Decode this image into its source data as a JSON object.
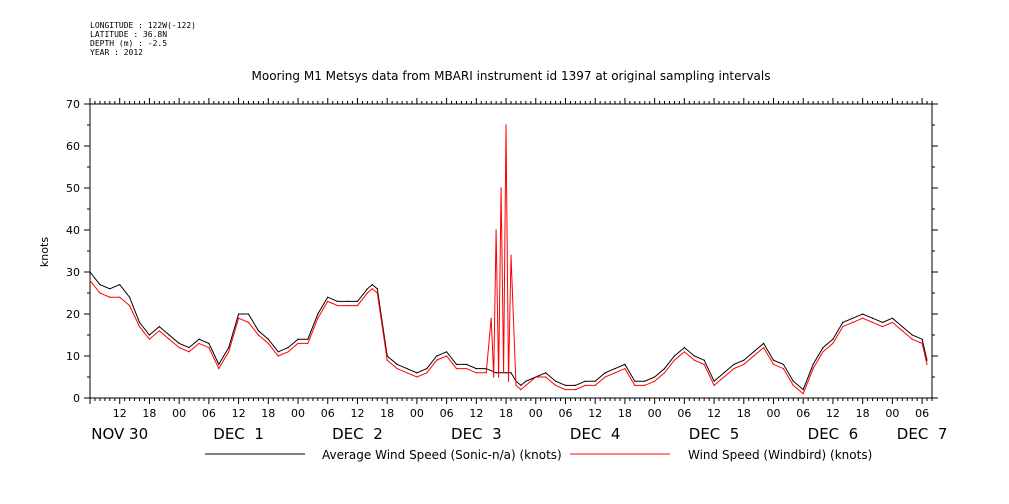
{
  "meta": {
    "longitude": "LONGITUDE : 122W(-122)",
    "latitude": "LATITUDE : 36.8N",
    "depth": "DEPTH (m) : -2.5",
    "year": "YEAR : 2012"
  },
  "chart_data": {
    "type": "line",
    "title": "Mooring M1 Metsys data from MBARI instrument id 1397 at original sampling intervals",
    "ylabel": "knots",
    "xlabel": "",
    "ylim": [
      0,
      70
    ],
    "yticks": [
      0,
      10,
      20,
      30,
      40,
      50,
      60,
      70
    ],
    "xlim_hours": [
      0,
      170
    ],
    "hour_labels": [
      "12",
      "18",
      "00",
      "06",
      "12",
      "18",
      "00",
      "06",
      "12",
      "18",
      "00",
      "06",
      "12",
      "18",
      "00",
      "06",
      "12",
      "18",
      "00",
      "06",
      "12",
      "18",
      "00",
      "06",
      "12",
      "18",
      "00",
      "06"
    ],
    "day_labels": [
      "NOV 30",
      "DEC  1",
      "DEC  2",
      "DEC  3",
      "DEC  4",
      "DEC  5",
      "DEC  6",
      "DEC  7"
    ],
    "day_label_hours": [
      6,
      30,
      54,
      78,
      102,
      126,
      150,
      168
    ],
    "grid": false,
    "legend_position": "bottom",
    "colors": {
      "black_series": "#000000",
      "red_series": "#ff0000"
    },
    "series": [
      {
        "name": "Average Wind Speed (Sonic-n/a) (knots)",
        "color": "#000000",
        "x": [
          0,
          2,
          4,
          6,
          8,
          10,
          12,
          14,
          16,
          18,
          20,
          22,
          24,
          26,
          28,
          30,
          32,
          34,
          36,
          38,
          40,
          42,
          44,
          46,
          48,
          50,
          52,
          54,
          56,
          57,
          58,
          60,
          62,
          64,
          66,
          68,
          70,
          72,
          74,
          76,
          78,
          80,
          82,
          84,
          85,
          86,
          87,
          88,
          90,
          92,
          94,
          96,
          98,
          100,
          102,
          104,
          106,
          108,
          110,
          112,
          114,
          116,
          118,
          120,
          122,
          124,
          126,
          128,
          130,
          132,
          134,
          136,
          138,
          140,
          142,
          144,
          146,
          148,
          150,
          152,
          154,
          156,
          158,
          160,
          162,
          164,
          166,
          168,
          169
        ],
        "y": [
          30,
          27,
          26,
          27,
          24,
          18,
          15,
          17,
          15,
          13,
          12,
          14,
          13,
          8,
          12,
          20,
          20,
          16,
          14,
          11,
          12,
          14,
          14,
          20,
          24,
          23,
          23,
          23,
          26,
          27,
          26,
          10,
          8,
          7,
          6,
          7,
          10,
          11,
          8,
          8,
          7,
          7,
          6,
          6,
          6,
          4,
          3,
          4,
          5,
          6,
          4,
          3,
          3,
          4,
          4,
          6,
          7,
          8,
          4,
          4,
          5,
          7,
          10,
          12,
          10,
          9,
          4,
          6,
          8,
          9,
          11,
          13,
          9,
          8,
          4,
          2,
          8,
          12,
          14,
          18,
          19,
          20,
          19,
          18,
          19,
          17,
          15,
          14,
          9
        ]
      },
      {
        "name": "Wind Speed (Windbird) (knots)",
        "color": "#ff0000",
        "x": [
          0,
          2,
          4,
          6,
          8,
          10,
          12,
          14,
          16,
          18,
          20,
          22,
          24,
          26,
          28,
          30,
          32,
          34,
          36,
          38,
          40,
          42,
          44,
          46,
          48,
          50,
          52,
          54,
          56,
          57,
          58,
          60,
          62,
          64,
          66,
          68,
          70,
          72,
          74,
          76,
          78,
          80,
          81,
          81.5,
          82,
          82.5,
          83,
          83.5,
          84,
          84.5,
          85,
          86,
          87,
          88,
          90,
          92,
          94,
          96,
          98,
          100,
          102,
          104,
          106,
          108,
          110,
          112,
          114,
          116,
          118,
          120,
          122,
          124,
          126,
          128,
          130,
          132,
          134,
          136,
          138,
          140,
          142,
          144,
          146,
          148,
          150,
          152,
          154,
          156,
          158,
          160,
          162,
          164,
          166,
          168,
          169
        ],
        "y": [
          28,
          25,
          24,
          24,
          22,
          17,
          14,
          16,
          14,
          12,
          11,
          13,
          12,
          7,
          11,
          19,
          18,
          15,
          13,
          10,
          11,
          13,
          13,
          19,
          23,
          22,
          22,
          22,
          25,
          26,
          25,
          9,
          7,
          6,
          5,
          6,
          9,
          10,
          7,
          7,
          6,
          6,
          19,
          5,
          40,
          5,
          50,
          6,
          65,
          4,
          34,
          3,
          2,
          3,
          5,
          5,
          3,
          2,
          2,
          3,
          3,
          5,
          6,
          7,
          3,
          3,
          4,
          6,
          9,
          11,
          9,
          8,
          3,
          5,
          7,
          8,
          10,
          12,
          8,
          7,
          3,
          1,
          7,
          11,
          13,
          17,
          18,
          19,
          18,
          17,
          18,
          16,
          14,
          13,
          8
        ]
      }
    ]
  }
}
